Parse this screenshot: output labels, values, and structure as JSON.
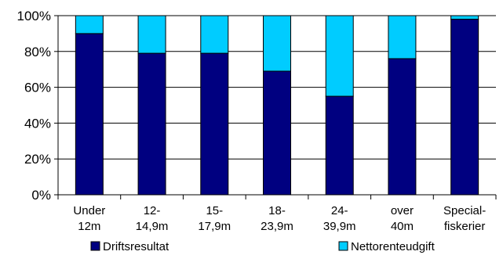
{
  "chart_data": {
    "type": "bar",
    "stacked": true,
    "percent_stacked": true,
    "categories": [
      [
        "Under",
        "12m"
      ],
      [
        "12-",
        "14,9m"
      ],
      [
        "15-",
        "17,9m"
      ],
      [
        "18-",
        "23,9m"
      ],
      [
        "24-",
        "39,9m"
      ],
      [
        "over",
        "40m"
      ],
      [
        "Special-",
        "fiskerier"
      ]
    ],
    "series": [
      {
        "name": "Driftsresultat",
        "color": "#000080",
        "values": [
          90,
          79,
          79,
          69,
          55,
          76,
          98
        ]
      },
      {
        "name": "Nettorenteudgift",
        "color": "#00CCFF",
        "values": [
          10,
          21,
          21,
          31,
          45,
          24,
          2
        ]
      }
    ],
    "yticks": [
      "0%",
      "20%",
      "40%",
      "60%",
      "80%",
      "100%"
    ],
    "ylim": [
      0,
      100
    ],
    "grid": true,
    "legend_position": "bottom"
  }
}
